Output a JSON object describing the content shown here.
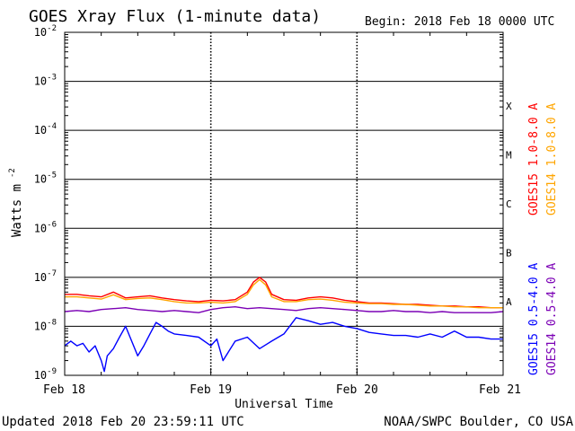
{
  "chart_data": {
    "type": "line",
    "title": "GOES Xray Flux (1-minute data)",
    "begin_label": "Begin:  2018 Feb 18 0000 UTC",
    "xlabel": "Universal Time",
    "ylabel": "Watts m",
    "ylabel_exponent": "-2",
    "y_scale": "log",
    "ylim": [
      1e-09,
      0.01
    ],
    "y_ticks": [
      {
        "value": 0.01,
        "base": "10",
        "exp": "-2"
      },
      {
        "value": 0.001,
        "base": "10",
        "exp": "-3"
      },
      {
        "value": 0.0001,
        "base": "10",
        "exp": "-4"
      },
      {
        "value": 1e-05,
        "base": "10",
        "exp": "-5"
      },
      {
        "value": 1e-06,
        "base": "10",
        "exp": "-6"
      },
      {
        "value": 1e-07,
        "base": "10",
        "exp": "-7"
      },
      {
        "value": 1e-08,
        "base": "10",
        "exp": "-8"
      },
      {
        "value": 1e-09,
        "base": "10",
        "exp": "-9"
      }
    ],
    "xlim": [
      0,
      72
    ],
    "x_unit": "hours since 2018 Feb 18 0000 UTC",
    "x_ticks": [
      {
        "value": 0,
        "label": "Feb 18"
      },
      {
        "value": 24,
        "label": "Feb 19"
      },
      {
        "value": 48,
        "label": "Feb 20"
      },
      {
        "value": 72,
        "label": "Feb 21"
      }
    ],
    "flare_classes": [
      {
        "label": "X",
        "value": 0.0001
      },
      {
        "label": "M",
        "value": 1e-05
      },
      {
        "label": "C",
        "value": 1e-06
      },
      {
        "label": "B",
        "value": 1e-07
      },
      {
        "label": "A",
        "value": 1e-08
      }
    ],
    "series": [
      {
        "name": "GOES15 1.0-8.0 A",
        "color": "#ff0000",
        "x": [
          0,
          2,
          4,
          6,
          8,
          10,
          12,
          14,
          16,
          18,
          20,
          22,
          24,
          26,
          28,
          30,
          31,
          32,
          33,
          34,
          36,
          38,
          40,
          42,
          44,
          46,
          48,
          50,
          52,
          54,
          56,
          58,
          60,
          62,
          64,
          66,
          68,
          70,
          72
        ],
        "y": [
          4.5e-08,
          4.5e-08,
          4.2e-08,
          4e-08,
          5e-08,
          3.8e-08,
          4e-08,
          4.2e-08,
          3.8e-08,
          3.5e-08,
          3.3e-08,
          3.2e-08,
          3.4e-08,
          3.3e-08,
          3.5e-08,
          5e-08,
          8e-08,
          1e-07,
          8e-08,
          4.5e-08,
          3.5e-08,
          3.4e-08,
          3.8e-08,
          4e-08,
          3.8e-08,
          3.4e-08,
          3.2e-08,
          3e-08,
          3e-08,
          2.9e-08,
          2.8e-08,
          2.8e-08,
          2.7e-08,
          2.6e-08,
          2.6e-08,
          2.5e-08,
          2.5e-08,
          2.4e-08,
          2.4e-08
        ]
      },
      {
        "name": "GOES14 1.0-8.0 A",
        "color": "#ffa500",
        "x": [
          0,
          2,
          4,
          6,
          8,
          10,
          12,
          14,
          16,
          18,
          20,
          22,
          24,
          26,
          28,
          30,
          31,
          32,
          33,
          34,
          36,
          38,
          40,
          42,
          44,
          46,
          48,
          50,
          52,
          54,
          56,
          58,
          60,
          62,
          64,
          66,
          68,
          70,
          72
        ],
        "y": [
          4e-08,
          4e-08,
          3.8e-08,
          3.6e-08,
          4.4e-08,
          3.5e-08,
          3.7e-08,
          3.8e-08,
          3.5e-08,
          3.2e-08,
          3e-08,
          3e-08,
          3.1e-08,
          3e-08,
          3.2e-08,
          4.5e-08,
          7e-08,
          9e-08,
          7e-08,
          4e-08,
          3.2e-08,
          3.2e-08,
          3.5e-08,
          3.6e-08,
          3.4e-08,
          3.1e-08,
          3e-08,
          2.9e-08,
          2.9e-08,
          2.8e-08,
          2.8e-08,
          2.7e-08,
          2.6e-08,
          2.6e-08,
          2.5e-08,
          2.5e-08,
          2.4e-08,
          2.4e-08,
          2.4e-08
        ]
      },
      {
        "name": "GOES15 0.5-4.0 A",
        "color": "#0000ff",
        "x": [
          0,
          1,
          2,
          3,
          4,
          5,
          6,
          6.5,
          7,
          8,
          9,
          10,
          12,
          13,
          14,
          15,
          16,
          17,
          18,
          20,
          22,
          24,
          25,
          26,
          28,
          30,
          32,
          34,
          36,
          38,
          40,
          42,
          44,
          46,
          48,
          50,
          52,
          54,
          56,
          58,
          60,
          62,
          64,
          66,
          68,
          70,
          72
        ],
        "y": [
          4e-09,
          5e-09,
          4e-09,
          4.5e-09,
          3e-09,
          4e-09,
          2e-09,
          1.2e-09,
          2.5e-09,
          3.5e-09,
          6e-09,
          1e-08,
          2.5e-09,
          4e-09,
          7e-09,
          1.2e-08,
          1e-08,
          8e-09,
          7e-09,
          6.5e-09,
          6e-09,
          4e-09,
          5.5e-09,
          2e-09,
          5e-09,
          6e-09,
          3.5e-09,
          5e-09,
          7e-09,
          1.5e-08,
          1.3e-08,
          1.1e-08,
          1.2e-08,
          1e-08,
          9e-09,
          7.5e-09,
          7e-09,
          6.5e-09,
          6.5e-09,
          6e-09,
          7e-09,
          6e-09,
          8e-09,
          6e-09,
          6e-09,
          5.5e-09,
          5.5e-09
        ]
      },
      {
        "name": "GOES14 0.5-4.0 A",
        "color": "#7b00b5",
        "x": [
          0,
          2,
          4,
          6,
          8,
          10,
          12,
          14,
          16,
          18,
          20,
          22,
          24,
          26,
          28,
          30,
          32,
          34,
          36,
          38,
          40,
          42,
          44,
          46,
          48,
          50,
          52,
          54,
          56,
          58,
          60,
          62,
          64,
          66,
          68,
          70,
          72
        ],
        "y": [
          2e-08,
          2.1e-08,
          2e-08,
          2.2e-08,
          2.3e-08,
          2.4e-08,
          2.2e-08,
          2.1e-08,
          2e-08,
          2.1e-08,
          2e-08,
          1.9e-08,
          2.2e-08,
          2.4e-08,
          2.5e-08,
          2.3e-08,
          2.4e-08,
          2.3e-08,
          2.2e-08,
          2.1e-08,
          2.3e-08,
          2.4e-08,
          2.3e-08,
          2.2e-08,
          2.1e-08,
          2e-08,
          2e-08,
          2.1e-08,
          2e-08,
          2e-08,
          1.9e-08,
          2e-08,
          1.9e-08,
          1.9e-08,
          1.9e-08,
          1.9e-08,
          2e-08
        ]
      }
    ]
  },
  "footer": {
    "updated": "Updated 2018 Feb 20 23:59:11 UTC",
    "source": "NOAA/SWPC Boulder, CO USA"
  }
}
